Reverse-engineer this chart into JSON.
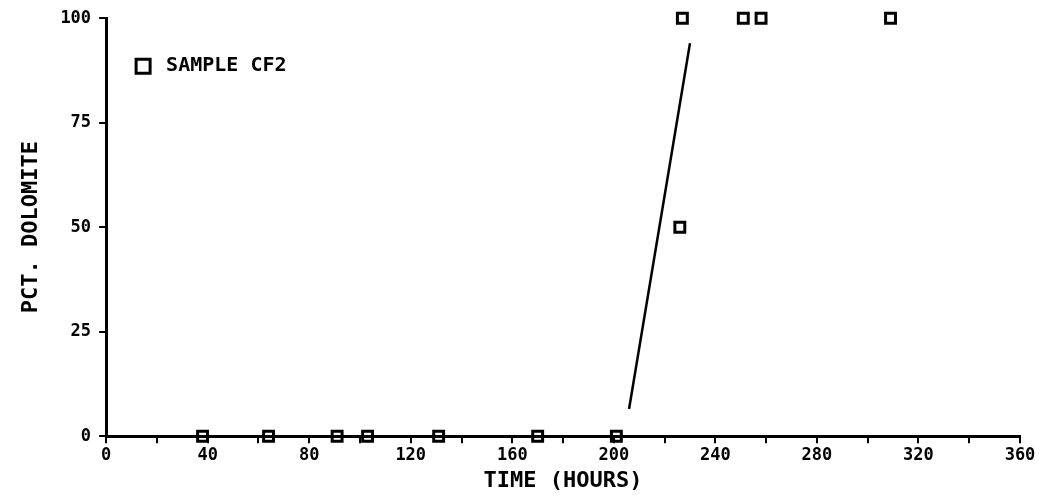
{
  "chart_data": {
    "type": "scatter",
    "xlabel": "TIME (HOURS)",
    "ylabel": "PCT. DOLOMITE",
    "xlim": [
      0,
      360
    ],
    "ylim": [
      0,
      100
    ],
    "xticks": [
      0,
      {
        "value": 20,
        "label": null
      },
      40,
      {
        "value": 60,
        "label": null
      },
      80,
      {
        "value": 100,
        "label": null
      },
      120,
      {
        "value": 140,
        "label": null
      },
      160,
      {
        "value": 180,
        "label": null
      },
      200,
      {
        "value": 220,
        "label": null
      },
      240,
      {
        "value": 260,
        "label": null
      },
      280,
      {
        "value": 300,
        "label": null
      },
      320,
      {
        "value": 340,
        "label": null
      },
      360
    ],
    "yticks": [
      0,
      25,
      50,
      75,
      100
    ],
    "grid": false,
    "legend": "top left",
    "series": [
      {
        "name": "SAMPLE CF2",
        "type": "scatter",
        "color": "#000000",
        "marker": "square",
        "x": [
          38,
          64,
          91,
          103,
          131,
          170,
          201,
          226,
          227,
          251,
          258,
          309
        ],
        "values": [
          0,
          0,
          0,
          0,
          0,
          0,
          0,
          50,
          100,
          100,
          100,
          100
        ]
      },
      {
        "type": "line",
        "color": "#000000",
        "marker": "none",
        "line_style": "solid",
        "x": [
          206,
          230
        ],
        "values": [
          6.5,
          94
        ]
      }
    ]
  }
}
